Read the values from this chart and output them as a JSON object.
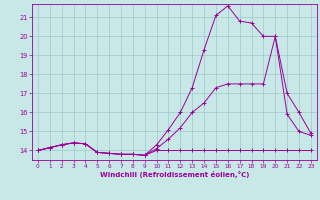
{
  "bg_color": "#c8e8e8",
  "grid_color": "#a0c8c8",
  "line_color": "#990099",
  "xlabel": "Windchill (Refroidissement éolien,°C)",
  "xlim": [
    -0.5,
    23.5
  ],
  "ylim": [
    13.5,
    21.7
  ],
  "yticks": [
    14,
    15,
    16,
    17,
    18,
    19,
    20,
    21
  ],
  "xticks": [
    0,
    1,
    2,
    3,
    4,
    5,
    6,
    7,
    8,
    9,
    10,
    11,
    12,
    13,
    14,
    15,
    16,
    17,
    18,
    19,
    20,
    21,
    22,
    23
  ],
  "line1_x": [
    0,
    1,
    2,
    3,
    4,
    5,
    6,
    7,
    8,
    9,
    10,
    11,
    12,
    13,
    14,
    15,
    16,
    17,
    18,
    19,
    20,
    21,
    22,
    23
  ],
  "line1_y": [
    14.0,
    14.15,
    14.3,
    14.4,
    14.35,
    13.9,
    13.85,
    13.8,
    13.8,
    13.75,
    14.0,
    14.0,
    14.0,
    14.0,
    14.0,
    14.0,
    14.0,
    14.0,
    14.0,
    14.0,
    14.0,
    14.0,
    14.0,
    14.0
  ],
  "line2_x": [
    0,
    1,
    2,
    3,
    4,
    5,
    6,
    7,
    8,
    9,
    10,
    11,
    12,
    13,
    14,
    15,
    16,
    17,
    18,
    19,
    20,
    21,
    22,
    23
  ],
  "line2_y": [
    14.0,
    14.15,
    14.3,
    14.4,
    14.35,
    13.9,
    13.85,
    13.8,
    13.8,
    13.75,
    14.1,
    14.6,
    15.2,
    16.0,
    16.5,
    17.3,
    17.5,
    17.5,
    17.5,
    17.5,
    20.0,
    15.9,
    15.0,
    14.8
  ],
  "line3_x": [
    0,
    1,
    2,
    3,
    4,
    5,
    6,
    7,
    8,
    9,
    10,
    11,
    12,
    13,
    14,
    15,
    16,
    17,
    18,
    19,
    20,
    21,
    22,
    23
  ],
  "line3_y": [
    14.0,
    14.15,
    14.3,
    14.4,
    14.35,
    13.9,
    13.85,
    13.8,
    13.8,
    13.75,
    14.3,
    15.1,
    16.0,
    17.3,
    19.3,
    21.1,
    21.6,
    20.8,
    20.7,
    20.0,
    20.0,
    17.0,
    16.0,
    14.9
  ]
}
